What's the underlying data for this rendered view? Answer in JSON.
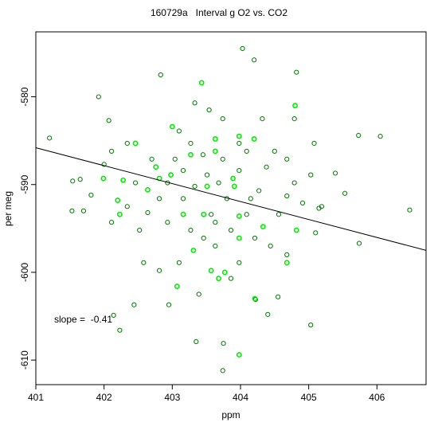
{
  "chart_data": {
    "type": "scatter",
    "title": "160729a   Interval g O2 vs. CO2",
    "xlabel": "ppm",
    "ylabel": "per meg",
    "annotation": "slope =  -0.41",
    "xlim": [
      401,
      406.72
    ],
    "ylim": [
      -612.8,
      -572.6
    ],
    "xticks": [
      401,
      402,
      403,
      404,
      405,
      406
    ],
    "yticks": [
      -580,
      -590,
      -600,
      -610
    ],
    "fit_line": {
      "x": [
        401,
        406.72
      ],
      "y": [
        -585.8,
        -597.5
      ],
      "color": "#000000"
    },
    "series": [
      {
        "color": "#007a00",
        "x": [
          401.2,
          401.92,
          402.0,
          401.54,
          401.65,
          401.53,
          401.7,
          402.07,
          402.14,
          402.23,
          402.44,
          402.95,
          402.83,
          403.33,
          403.54,
          403.75,
          403.35,
          403.74,
          404.03,
          404.2,
          404.82,
          405.15,
          405.03,
          405.19,
          405.39,
          405.53,
          405.73,
          406.05,
          406.48,
          405.74,
          405.1,
          404.91,
          404.56,
          404.27,
          404.4,
          404.55,
          404.22,
          403.51,
          403.16,
          402.93,
          402.7,
          402.64,
          402.58,
          402.81,
          403.46,
          403.63,
          403.86,
          403.98,
          404.21,
          404.44,
          404.68,
          404.38,
          404.5,
          404.68,
          403.98,
          403.74,
          403.27,
          403.04,
          403.1,
          403.74,
          404.09,
          404.15,
          403.8,
          403.57,
          403.33,
          402.81,
          402.46,
          402.34,
          402.11,
          402.52,
          402.93,
          404.79,
          405.03,
          405.08,
          404.79,
          404.32,
          402.34,
          402.11,
          401.81,
          404.68,
          403.45,
          403.68,
          403.98,
          403.16,
          403.39,
          403.1,
          403.63,
          403.86,
          404.09,
          403.27
        ],
        "y": [
          -584.7,
          -580,
          -587.7,
          -589.6,
          -589.4,
          -593,
          -593,
          -582.7,
          -604.9,
          -606.6,
          -603.7,
          -603.7,
          -577.5,
          -580.7,
          -581.5,
          -608.1,
          -607.9,
          -611.2,
          -574.5,
          -575.8,
          -577.2,
          -592.7,
          -606,
          -592.5,
          -588.7,
          -591,
          -584.4,
          -584.5,
          -592.9,
          -596.7,
          -595.5,
          -592.1,
          -593.4,
          -590.7,
          -604.8,
          -602.8,
          -603.1,
          -588.9,
          -591.6,
          -589.8,
          -587.1,
          -593.2,
          -598.9,
          -599.8,
          -596.1,
          -597,
          -600.7,
          -598.9,
          -596.1,
          -597,
          -598,
          -588,
          -586.2,
          -587.1,
          -585.3,
          -587.1,
          -585.3,
          -587.1,
          -583.9,
          -582.5,
          -586.2,
          -591.6,
          -591.6,
          -593.4,
          -590.2,
          -591.6,
          -589.8,
          -592.5,
          -594.3,
          -595.2,
          -594.3,
          -589.8,
          -588.9,
          -585.3,
          -582.5,
          -582.5,
          -585.3,
          -586.2,
          -591.2,
          -591.3,
          -586.6,
          -589.8,
          -588.4,
          -588.4,
          -602.5,
          -598.9,
          -594.3,
          -595.2,
          -593.4,
          -595.2
        ]
      },
      {
        "color": "#00ee00",
        "x": [
          403.43,
          403.0,
          403.98,
          403.63,
          404.2,
          402.76,
          402.98,
          403.27,
          403.63,
          403.89,
          403.91,
          403.51,
          403.16,
          403.46,
          403.98,
          404.33,
          403.31,
          403.57,
          403.68,
          403.98,
          403.77,
          402.2,
          402.23,
          401.99,
          402.28,
          402.46,
          403.07,
          403.98,
          404.21,
          404.8,
          404.82,
          404.68,
          402.64,
          402.81
        ],
        "y": [
          -578.4,
          -583.4,
          -584.5,
          -584.8,
          -584.8,
          -588,
          -588.9,
          -586.6,
          -586.2,
          -589.3,
          -590.2,
          -590.2,
          -593.4,
          -593.4,
          -593.6,
          -594.8,
          -597.5,
          -599.8,
          -600.7,
          -596.1,
          -600.0,
          -591.8,
          -593.4,
          -589.3,
          -589.5,
          -585.3,
          -601.6,
          -609.4,
          -603,
          -581,
          -595.2,
          -598.9,
          -590.6,
          -589.3
        ]
      }
    ]
  }
}
